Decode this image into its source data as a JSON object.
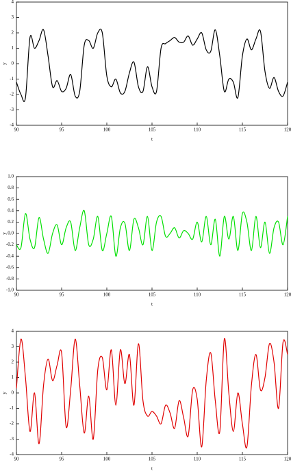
{
  "chart_data": [
    {
      "type": "line",
      "x_label": "t",
      "y_label": "y",
      "x": [
        90,
        90.5,
        91,
        91.5,
        92,
        92.5,
        93,
        93.5,
        94,
        94.5,
        95,
        95.5,
        96,
        96.5,
        97,
        97.5,
        98,
        98.5,
        99,
        99.5,
        100,
        100.5,
        101,
        101.5,
        102,
        102.5,
        103,
        103.5,
        104,
        104.5,
        105,
        105.5,
        106,
        106.5,
        107,
        107.5,
        108,
        108.5,
        109,
        109.5,
        110,
        110.5,
        111,
        111.5,
        112,
        112.5,
        113,
        113.5,
        114,
        114.5,
        115,
        115.5,
        116,
        116.5,
        117,
        117.5,
        118,
        118.5,
        119,
        119.5,
        120
      ],
      "series": [
        {
          "color": "#000000",
          "values": [
            -1.2,
            -2.0,
            -2.2,
            1.7,
            1.0,
            1.5,
            2.2,
            0.5,
            -1.5,
            -1.1,
            -1.8,
            -1.6,
            -0.7,
            -2.1,
            -1.8,
            1.2,
            1.5,
            1.0,
            2.0,
            2.0,
            -0.8,
            -1.5,
            -1.0,
            -1.9,
            -1.8,
            -0.6,
            0.1,
            -1.5,
            -1.8,
            -0.2,
            -1.5,
            -1.8,
            1.0,
            1.3,
            1.5,
            1.7,
            1.4,
            1.4,
            1.8,
            1.2,
            1.6,
            2.0,
            0.9,
            0.8,
            2.2,
            0.5,
            -1.8,
            -1.0,
            -1.2,
            -2.2,
            0.5,
            1.6,
            0.9,
            1.6,
            2.1,
            -0.5,
            -1.6,
            -0.9,
            -1.8,
            -2.1,
            -1.2
          ]
        }
      ],
      "xlim": [
        90,
        120
      ],
      "xticks": [
        90,
        95,
        100,
        105,
        110,
        115,
        120
      ],
      "ylim": [
        -4,
        4
      ],
      "yticks": [
        -4,
        -3,
        -2,
        -1,
        0,
        1,
        2,
        3,
        4
      ]
    },
    {
      "type": "line",
      "x_label": "t",
      "y_label": "y",
      "x": [
        90,
        90.5,
        91,
        91.5,
        92,
        92.5,
        93,
        93.5,
        94,
        94.5,
        95,
        95.5,
        96,
        96.5,
        97,
        97.5,
        98,
        98.5,
        99,
        99.5,
        100,
        100.5,
        101,
        101.5,
        102,
        102.5,
        103,
        103.5,
        104,
        104.5,
        105,
        105.5,
        106,
        106.5,
        107,
        107.5,
        108,
        108.5,
        109,
        109.5,
        110,
        110.5,
        111,
        111.5,
        112,
        112.5,
        113,
        113.5,
        114,
        114.5,
        115,
        115.5,
        116,
        116.5,
        117,
        117.5,
        118,
        118.5,
        119,
        119.5,
        120
      ],
      "series": [
        {
          "color": "#00e000",
          "values": [
            -0.2,
            -0.25,
            0.35,
            -0.1,
            -0.25,
            0.28,
            -0.1,
            -0.35,
            0.0,
            0.15,
            -0.2,
            0.1,
            0.2,
            -0.3,
            0.1,
            0.4,
            -0.2,
            -0.1,
            0.3,
            -0.3,
            0.0,
            0.3,
            -0.4,
            0.1,
            0.18,
            -0.3,
            0.25,
            0.1,
            -0.2,
            0.3,
            -0.3,
            0.2,
            0.3,
            -0.05,
            0.0,
            0.1,
            -0.08,
            0.05,
            0.0,
            -0.1,
            0.2,
            -0.15,
            0.3,
            -0.2,
            0.25,
            -0.4,
            0.3,
            -0.1,
            0.3,
            -0.3,
            0.35,
            0.2,
            -0.3,
            0.3,
            -0.25,
            0.2,
            -0.35,
            0.1,
            0.2,
            -0.2,
            0.3
          ]
        }
      ],
      "xlim": [
        90,
        120
      ],
      "xticks": [
        90,
        95,
        100,
        105,
        110,
        115,
        120
      ],
      "ylim": [
        -1,
        1
      ],
      "yticks": [
        {
          "value": -1,
          "label": "-1.0"
        },
        -0.8,
        -0.6,
        -0.4,
        -0.2,
        {
          "value": 0,
          "label": "0.0"
        },
        0.2,
        0.4,
        0.6,
        0.8,
        {
          "value": 1,
          "label": "1.0"
        }
      ]
    },
    {
      "type": "line",
      "x_label": "t",
      "y_label": "y",
      "x": [
        90,
        90.5,
        91,
        91.5,
        92,
        92.5,
        93,
        93.5,
        94,
        94.5,
        95,
        95.5,
        96,
        96.5,
        97,
        97.5,
        98,
        98.5,
        99,
        99.5,
        100,
        100.5,
        101,
        101.5,
        102,
        102.5,
        103,
        103.5,
        104,
        104.5,
        105,
        105.5,
        106,
        106.5,
        107,
        107.5,
        108,
        108.5,
        109,
        109.5,
        110,
        110.5,
        111,
        111.5,
        112,
        112.5,
        113,
        113.5,
        114,
        114.5,
        115,
        115.5,
        116,
        116.5,
        117,
        117.5,
        118,
        118.5,
        119,
        119.5,
        120
      ],
      "series": [
        {
          "color": "#e00000",
          "values": [
            0.3,
            3.5,
            1.0,
            -2.5,
            0.0,
            -3.3,
            0.5,
            2.2,
            0.8,
            1.8,
            2.6,
            -2.2,
            0.2,
            3.5,
            0.5,
            -2.6,
            -0.2,
            -3.0,
            1.5,
            2.3,
            0.2,
            2.8,
            -0.8,
            2.8,
            0.6,
            2.5,
            -0.8,
            3.2,
            -0.5,
            -1.5,
            -1.2,
            -1.5,
            -2.0,
            -0.8,
            -1.3,
            -2.3,
            -0.5,
            -1.6,
            -2.8,
            0.2,
            -0.4,
            -3.5,
            0.8,
            2.6,
            -0.5,
            -2.5,
            3.5,
            0.0,
            -2.5,
            0.0,
            -2.0,
            -3.5,
            0.5,
            2.5,
            0.2,
            1.0,
            3.2,
            2.0,
            -1.0,
            3.3,
            2.5
          ]
        }
      ],
      "xlim": [
        90,
        120
      ],
      "xticks": [
        90,
        95,
        100,
        105,
        110,
        115,
        120
      ],
      "ylim": [
        -4,
        4
      ],
      "yticks": [
        -4,
        -3,
        -2,
        -1,
        0,
        1,
        2,
        3,
        4
      ]
    }
  ]
}
